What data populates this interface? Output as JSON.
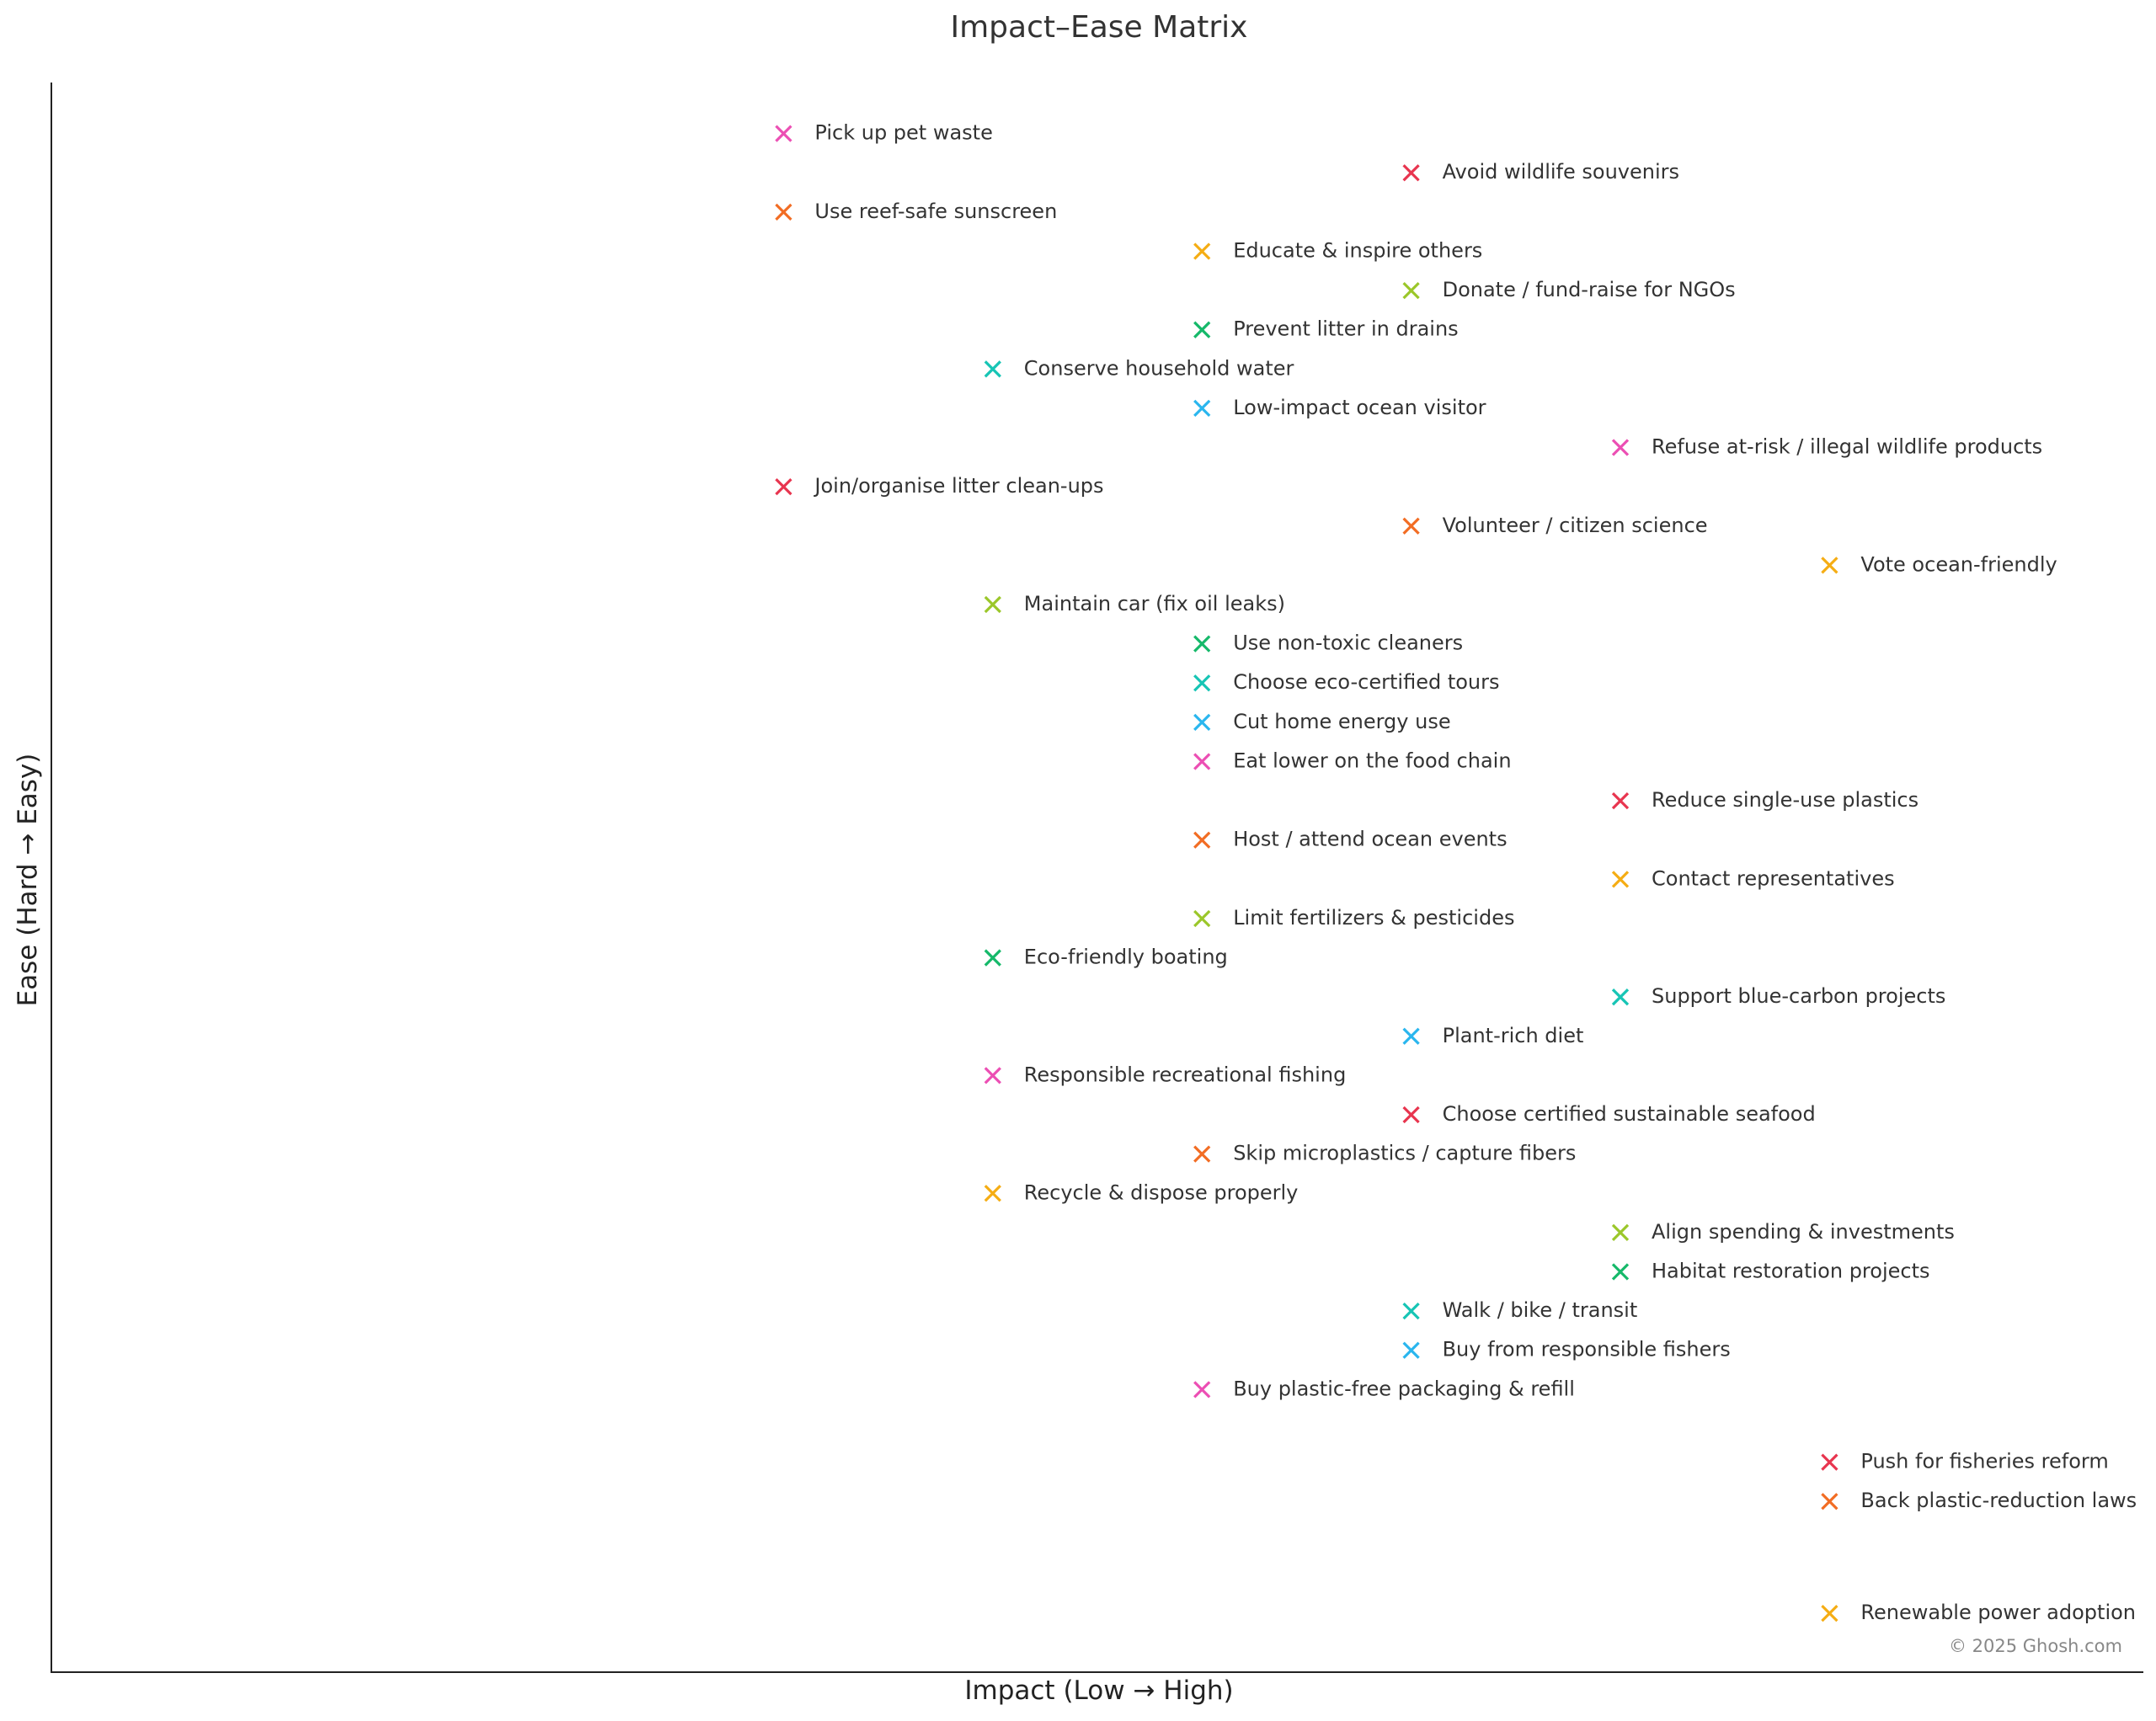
{
  "chart_data": {
    "type": "scatter",
    "title": "Impact–Ease Matrix",
    "xlabel": "Impact (Low → High)",
    "ylabel": "Ease (Hard → Easy)",
    "grid": false,
    "legend": "none",
    "x_ticks": false,
    "y_ticks": false,
    "xlim": [
      0,
      10
    ],
    "ylim": [
      0,
      40.5
    ],
    "marker": "x",
    "colors": [
      "#e8354f",
      "#f26d24",
      "#f5ad14",
      "#9bc72a",
      "#16b96a",
      "#17c5b5",
      "#2ab6ee",
      "#ec4fb4"
    ],
    "points": [
      {
        "label": "Pick up pet waste",
        "impact": 3.5,
        "ease": 39.2,
        "color": "#ec4fb4"
      },
      {
        "label": "Avoid wildlife souvenirs",
        "impact": 6.5,
        "ease": 38.2,
        "color": "#e8354f"
      },
      {
        "label": "Use reef-safe sunscreen",
        "impact": 3.5,
        "ease": 37.2,
        "color": "#f26d24"
      },
      {
        "label": "Educate & inspire others",
        "impact": 5.5,
        "ease": 36.2,
        "color": "#f5ad14"
      },
      {
        "label": "Donate / fund-raise for NGOs",
        "impact": 6.5,
        "ease": 35.2,
        "color": "#9bc72a"
      },
      {
        "label": "Prevent litter in drains",
        "impact": 5.5,
        "ease": 34.2,
        "color": "#16b96a"
      },
      {
        "label": "Conserve household water",
        "impact": 4.5,
        "ease": 33.2,
        "color": "#17c5b5"
      },
      {
        "label": "Low-impact ocean visitor",
        "impact": 5.5,
        "ease": 32.2,
        "color": "#2ab6ee"
      },
      {
        "label": "Refuse at-risk / illegal wildlife products",
        "impact": 7.5,
        "ease": 31.2,
        "color": "#ec4fb4"
      },
      {
        "label": "Join/organise litter clean-ups",
        "impact": 3.5,
        "ease": 30.2,
        "color": "#e8354f"
      },
      {
        "label": "Volunteer / citizen science",
        "impact": 6.5,
        "ease": 29.2,
        "color": "#f26d24"
      },
      {
        "label": "Vote ocean-friendly",
        "impact": 8.5,
        "ease": 28.2,
        "color": "#f5ad14"
      },
      {
        "label": "Maintain car (fix oil leaks)",
        "impact": 4.5,
        "ease": 27.2,
        "color": "#9bc72a"
      },
      {
        "label": "Use non-toxic cleaners",
        "impact": 5.5,
        "ease": 26.2,
        "color": "#16b96a"
      },
      {
        "label": "Choose eco-certified tours",
        "impact": 5.5,
        "ease": 25.2,
        "color": "#17c5b5"
      },
      {
        "label": "Cut home energy use",
        "impact": 5.5,
        "ease": 24.2,
        "color": "#2ab6ee"
      },
      {
        "label": "Eat lower on the food chain",
        "impact": 5.5,
        "ease": 23.2,
        "color": "#ec4fb4"
      },
      {
        "label": "Reduce single-use plastics",
        "impact": 7.5,
        "ease": 22.2,
        "color": "#e8354f"
      },
      {
        "label": "Host / attend ocean events",
        "impact": 5.5,
        "ease": 21.2,
        "color": "#f26d24"
      },
      {
        "label": "Contact representatives",
        "impact": 7.5,
        "ease": 20.2,
        "color": "#f5ad14"
      },
      {
        "label": "Limit fertilizers & pesticides",
        "impact": 5.5,
        "ease": 19.2,
        "color": "#9bc72a"
      },
      {
        "label": "Eco-friendly boating",
        "impact": 4.5,
        "ease": 18.2,
        "color": "#16b96a"
      },
      {
        "label": "Support blue-carbon projects",
        "impact": 7.5,
        "ease": 17.2,
        "color": "#17c5b5"
      },
      {
        "label": "Plant-rich diet",
        "impact": 6.5,
        "ease": 16.2,
        "color": "#2ab6ee"
      },
      {
        "label": "Responsible recreational fishing",
        "impact": 4.5,
        "ease": 15.2,
        "color": "#ec4fb4"
      },
      {
        "label": "Choose certified sustainable seafood",
        "impact": 6.5,
        "ease": 14.2,
        "color": "#e8354f"
      },
      {
        "label": "Skip microplastics / capture fibers",
        "impact": 5.5,
        "ease": 13.2,
        "color": "#f26d24"
      },
      {
        "label": "Recycle & dispose properly",
        "impact": 4.5,
        "ease": 12.2,
        "color": "#f5ad14"
      },
      {
        "label": "Align spending & investments",
        "impact": 7.5,
        "ease": 11.2,
        "color": "#9bc72a"
      },
      {
        "label": "Habitat restoration projects",
        "impact": 7.5,
        "ease": 10.2,
        "color": "#16b96a"
      },
      {
        "label": "Walk / bike / transit",
        "impact": 6.5,
        "ease": 9.2,
        "color": "#17c5b5"
      },
      {
        "label": "Buy from responsible fishers",
        "impact": 6.5,
        "ease": 8.2,
        "color": "#2ab6ee"
      },
      {
        "label": "Buy plastic-free packaging & refill",
        "impact": 5.5,
        "ease": 7.2,
        "color": "#ec4fb4"
      },
      {
        "label": "Push for fisheries reform",
        "impact": 8.5,
        "ease": 5.35,
        "color": "#e8354f"
      },
      {
        "label": "Back plastic-reduction laws",
        "impact": 8.5,
        "ease": 4.35,
        "color": "#f26d24"
      },
      {
        "label": "Renewable power adoption",
        "impact": 8.5,
        "ease": 1.5,
        "color": "#f5ad14"
      }
    ]
  },
  "credit": "© 2025 Ghosh.com"
}
